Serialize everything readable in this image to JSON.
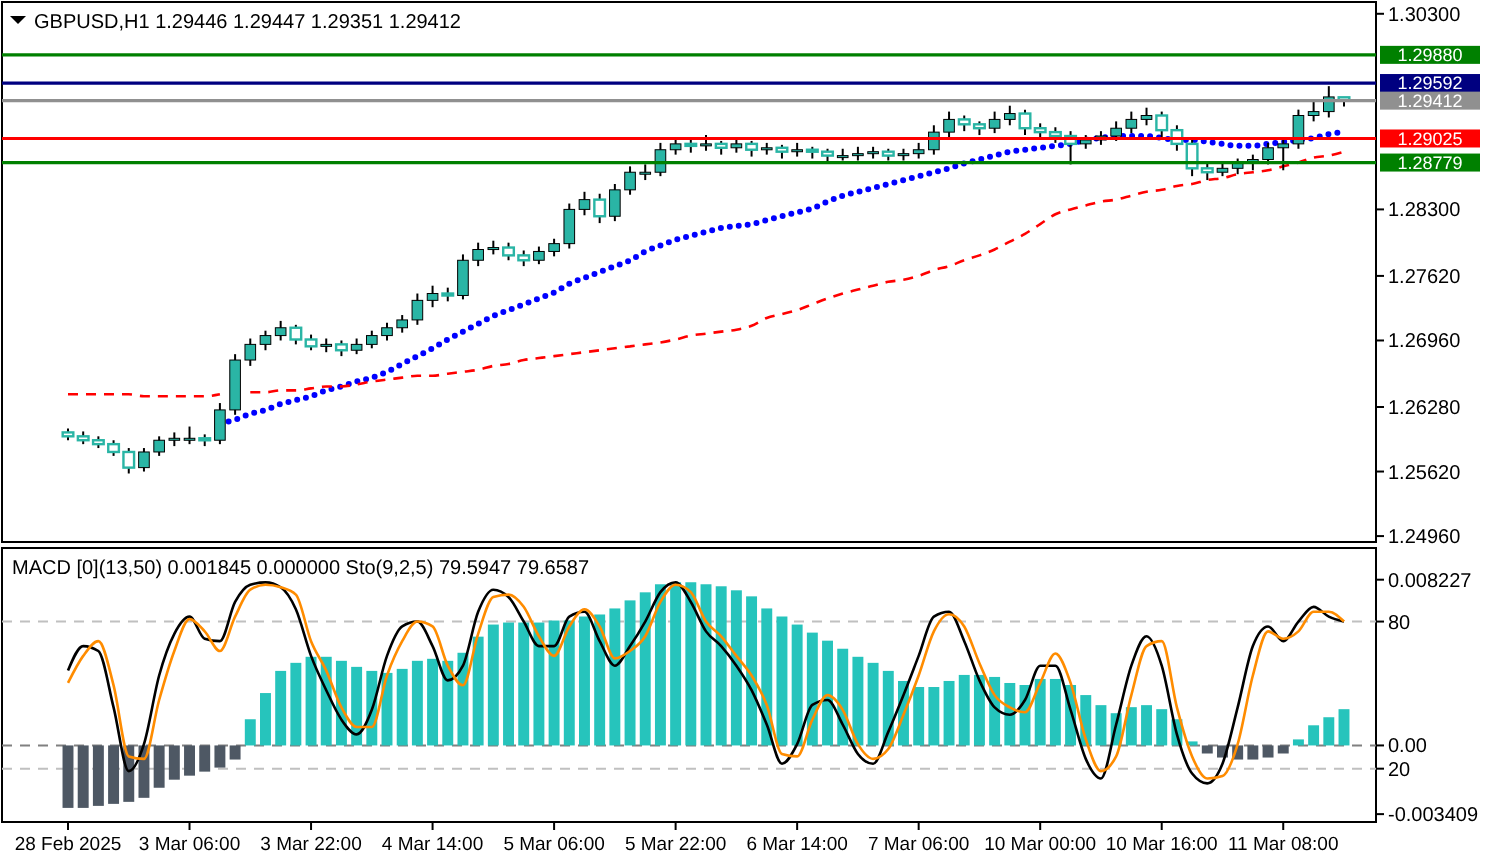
{
  "chart_data": [
    {
      "type": "candlestick",
      "title": "GBPUSD,H1  1.29446 1.29447 1.29351 1.29412",
      "color": "#2ab5a5",
      "ohlc": [
        [
          1.2602,
          1.2606,
          1.2594,
          1.2598
        ],
        [
          1.2598,
          1.2603,
          1.259,
          1.2594
        ],
        [
          1.2594,
          1.2598,
          1.2586,
          1.259
        ],
        [
          1.259,
          1.2594,
          1.2578,
          1.2582
        ],
        [
          1.2582,
          1.2586,
          1.256,
          1.2566
        ],
        [
          1.2566,
          1.2586,
          1.2562,
          1.2582
        ],
        [
          1.2582,
          1.2598,
          1.2578,
          1.2594
        ],
        [
          1.2594,
          1.2602,
          1.2588,
          1.2596
        ],
        [
          1.2596,
          1.2608,
          1.259,
          1.2596
        ],
        [
          1.2596,
          1.26,
          1.2588,
          1.2594
        ],
        [
          1.2594,
          1.2632,
          1.259,
          1.2625
        ],
        [
          1.2625,
          1.2682,
          1.262,
          1.2676
        ],
        [
          1.2676,
          1.2698,
          1.267,
          1.2692
        ],
        [
          1.2692,
          1.2706,
          1.2686,
          1.2701
        ],
        [
          1.2701,
          1.2716,
          1.2696,
          1.2709
        ],
        [
          1.2709,
          1.2712,
          1.2692,
          1.2697
        ],
        [
          1.2697,
          1.2702,
          1.2686,
          1.269
        ],
        [
          1.269,
          1.2698,
          1.2684,
          1.2692
        ],
        [
          1.2692,
          1.2696,
          1.268,
          1.2686
        ],
        [
          1.2686,
          1.2698,
          1.2682,
          1.2692
        ],
        [
          1.2692,
          1.2706,
          1.2688,
          1.2701
        ],
        [
          1.2701,
          1.2714,
          1.2696,
          1.2709
        ],
        [
          1.2709,
          1.2722,
          1.2704,
          1.2717
        ],
        [
          1.2717,
          1.2744,
          1.2712,
          1.2737
        ],
        [
          1.2737,
          1.2752,
          1.273,
          1.2744
        ],
        [
          1.2744,
          1.275,
          1.2736,
          1.2742
        ],
        [
          1.2742,
          1.2784,
          1.2738,
          1.2778
        ],
        [
          1.2778,
          1.2796,
          1.2772,
          1.2789
        ],
        [
          1.2789,
          1.2798,
          1.2784,
          1.2791
        ],
        [
          1.2791,
          1.2796,
          1.2778,
          1.2783
        ],
        [
          1.2783,
          1.2788,
          1.2772,
          1.2778
        ],
        [
          1.2778,
          1.2792,
          1.2774,
          1.2787
        ],
        [
          1.2787,
          1.28,
          1.2782,
          1.2795
        ],
        [
          1.2795,
          1.2836,
          1.279,
          1.283
        ],
        [
          1.283,
          1.2848,
          1.2824,
          1.284
        ],
        [
          1.284,
          1.2846,
          1.2816,
          1.2823
        ],
        [
          1.2823,
          1.2856,
          1.2818,
          1.285
        ],
        [
          1.285,
          1.2874,
          1.2845,
          1.2868
        ],
        [
          1.2868,
          1.2876,
          1.286,
          1.2868
        ],
        [
          1.2868,
          1.2898,
          1.2864,
          1.2891
        ],
        [
          1.2891,
          1.2904,
          1.2886,
          1.2897
        ],
        [
          1.2897,
          1.2902,
          1.2888,
          1.2895
        ],
        [
          1.2895,
          1.2906,
          1.289,
          1.2897
        ],
        [
          1.2897,
          1.29,
          1.2886,
          1.2893
        ],
        [
          1.2893,
          1.2904,
          1.2888,
          1.2897
        ],
        [
          1.2897,
          1.29,
          1.2884,
          1.2891
        ],
        [
          1.2891,
          1.2898,
          1.2886,
          1.2893
        ],
        [
          1.2893,
          1.2896,
          1.2882,
          1.2889
        ],
        [
          1.2889,
          1.2898,
          1.2884,
          1.2891
        ],
        [
          1.2891,
          1.2894,
          1.2882,
          1.2889
        ],
        [
          1.2889,
          1.2892,
          1.2878,
          1.2885
        ],
        [
          1.2885,
          1.2892,
          1.288,
          1.2885
        ],
        [
          1.2885,
          1.2894,
          1.288,
          1.2887
        ],
        [
          1.2887,
          1.2894,
          1.2882,
          1.2889
        ],
        [
          1.2889,
          1.2892,
          1.288,
          1.2885
        ],
        [
          1.2885,
          1.2892,
          1.288,
          1.2887
        ],
        [
          1.2887,
          1.2898,
          1.2882,
          1.2891
        ],
        [
          1.2891,
          1.2916,
          1.2886,
          1.2909
        ],
        [
          1.2909,
          1.293,
          1.2904,
          1.2922
        ],
        [
          1.2922,
          1.2926,
          1.291,
          1.2917
        ],
        [
          1.2917,
          1.292,
          1.2906,
          1.2913
        ],
        [
          1.2913,
          1.293,
          1.2908,
          1.2922
        ],
        [
          1.2922,
          1.2936,
          1.2916,
          1.2928
        ],
        [
          1.2928,
          1.2932,
          1.2906,
          1.2913
        ],
        [
          1.2913,
          1.2918,
          1.2902,
          1.2909
        ],
        [
          1.2909,
          1.2914,
          1.2898,
          1.2905
        ],
        [
          1.2905,
          1.291,
          1.2876,
          1.2897
        ],
        [
          1.2897,
          1.2906,
          1.2892,
          1.2901
        ],
        [
          1.2901,
          1.291,
          1.2896,
          1.2905
        ],
        [
          1.2905,
          1.292,
          1.29,
          1.2913
        ],
        [
          1.2913,
          1.293,
          1.2908,
          1.2922
        ],
        [
          1.2922,
          1.2934,
          1.2916,
          1.2926
        ],
        [
          1.2926,
          1.293,
          1.2904,
          1.2911
        ],
        [
          1.2911,
          1.2916,
          1.289,
          1.2897
        ],
        [
          1.2897,
          1.2902,
          1.2864,
          1.2872
        ],
        [
          1.2872,
          1.2878,
          1.286,
          1.2868
        ],
        [
          1.2868,
          1.2878,
          1.2864,
          1.2872
        ],
        [
          1.2872,
          1.2882,
          1.2866,
          1.2877
        ],
        [
          1.2877,
          1.2886,
          1.287,
          1.2881
        ],
        [
          1.2881,
          1.2898,
          1.2876,
          1.2893
        ],
        [
          1.2893,
          1.2902,
          1.287,
          1.2897
        ],
        [
          1.2897,
          1.2932,
          1.2892,
          1.2926
        ],
        [
          1.2926,
          1.294,
          1.292,
          1.293
        ],
        [
          1.293,
          1.2956,
          1.2924,
          1.2945
        ],
        [
          1.29446,
          1.29447,
          1.29351,
          1.29412
        ]
      ],
      "series": [
        {
          "type": "line",
          "color": "#0000ff",
          "line_style": "dotted",
          "values": [
            null,
            null,
            null,
            null,
            null,
            null,
            null,
            null,
            null,
            null,
            1.2611,
            1.2615,
            1.2621,
            1.2625,
            1.2631,
            1.2635,
            1.2639,
            1.2645,
            1.2649,
            1.2654,
            1.2658,
            1.2664,
            1.2672,
            1.268,
            1.2688,
            1.2697,
            1.2705,
            1.2713,
            1.2721,
            1.2727,
            1.2733,
            1.2739,
            1.2745,
            1.2754,
            1.276,
            1.2766,
            1.2772,
            1.2778,
            1.2787,
            1.2793,
            1.2799,
            1.2803,
            1.2807,
            1.2811,
            1.2813,
            1.2815,
            1.2819,
            1.2823,
            1.2827,
            1.2831,
            1.2838,
            1.2844,
            1.2848,
            1.2852,
            1.2856,
            1.286,
            1.2864,
            1.2868,
            1.2872,
            1.2877,
            1.2881,
            1.2885,
            1.2889,
            1.2891,
            1.2893,
            1.2895,
            1.2897,
            1.2901,
            1.2903,
            1.2905,
            1.2905,
            1.2905,
            1.2903,
            1.2901,
            1.2901,
            1.2899,
            1.2897,
            1.2895,
            1.2895,
            1.2897,
            1.2899,
            1.2901,
            1.2903,
            1.2907,
            1.2909
          ]
        },
        {
          "type": "line",
          "color": "#ff0000",
          "line_style": "dashed",
          "values": [
            1.2641,
            1.2641,
            1.2641,
            1.2641,
            1.2641,
            1.2639,
            1.2639,
            1.2639,
            1.2639,
            1.2639,
            1.2641,
            null,
            1.2643,
            1.2643,
            1.2645,
            1.2645,
            1.2647,
            1.2649,
            1.2649,
            1.2651,
            1.2654,
            1.2656,
            1.2658,
            1.266,
            1.266,
            1.2662,
            1.2664,
            1.2666,
            1.267,
            1.2672,
            1.2676,
            1.2678,
            1.268,
            1.2682,
            1.2684,
            1.2686,
            1.2688,
            1.269,
            1.2692,
            1.2694,
            1.2697,
            1.2701,
            1.2703,
            1.2705,
            1.2707,
            1.2711,
            1.2719,
            1.2723,
            1.2727,
            1.2733,
            1.2739,
            1.2744,
            1.2748,
            1.2752,
            1.2756,
            1.2758,
            1.2762,
            1.2768,
            1.2772,
            1.2778,
            1.2783,
            1.2789,
            1.2797,
            1.2805,
            1.2815,
            1.2825,
            1.283,
            1.2834,
            1.2838,
            1.284,
            1.2844,
            1.2848,
            1.285,
            1.2854,
            1.2856,
            1.286,
            1.2862,
            1.2866,
            1.2868,
            1.287,
            1.2874,
            1.2878,
            1.2883,
            1.2885,
            1.2889
          ]
        }
      ],
      "ylim": [
        1.2492,
        1.304
      ],
      "yticks": [
        {
          "value": 1.303,
          "label": "1.30300"
        },
        {
          "value": 1.283,
          "label": "1.28300"
        },
        {
          "value": 1.2762,
          "label": "1.27620"
        },
        {
          "value": 1.2696,
          "label": "1.26960"
        },
        {
          "value": 1.2628,
          "label": "1.26280"
        },
        {
          "value": 1.2562,
          "label": "1.25620"
        },
        {
          "value": 1.2496,
          "label": "1.24960"
        }
      ],
      "tick_labels": "y",
      "ref_lines": [
        {
          "axis": "y",
          "value": 1.2988,
          "label": "1.29880",
          "color": "#008000"
        },
        {
          "axis": "y",
          "value": 1.29592,
          "label": "1.29592",
          "color": "#000080"
        },
        {
          "axis": "y",
          "value": 1.29412,
          "label": "1.29412",
          "color": "#909090"
        },
        {
          "axis": "y",
          "value": 1.29025,
          "label": "1.29025",
          "color": "#ff0000"
        },
        {
          "axis": "y",
          "value": 1.28779,
          "label": "1.28779",
          "color": "#008000"
        }
      ]
    },
    {
      "type": "bar",
      "title": "MACD [0](13,50) 0.001845 0.000000  Sto(9,2,5) 79.5947 79.6587",
      "categories": [
        "28 Feb 2025",
        null,
        null,
        null,
        null,
        null,
        null,
        null,
        "3 Mar 06:00",
        null,
        null,
        null,
        null,
        null,
        null,
        null,
        "3 Mar 22:00",
        null,
        null,
        null,
        null,
        null,
        null,
        null,
        "4 Mar 14:00",
        null,
        null,
        null,
        null,
        null,
        null,
        null,
        "5 Mar 06:00",
        null,
        null,
        null,
        null,
        null,
        null,
        null,
        "5 Mar 22:00",
        null,
        null,
        null,
        null,
        null,
        null,
        null,
        "6 Mar 14:00",
        null,
        null,
        null,
        null,
        null,
        null,
        null,
        "7 Mar 06:00",
        null,
        null,
        null,
        null,
        null,
        null,
        null,
        "10 Mar 00:00",
        null,
        null,
        null,
        null,
        null,
        null,
        null,
        "10 Mar 16:00",
        null,
        null,
        null,
        null,
        null,
        null,
        null,
        "11 Mar 08:00",
        null,
        null,
        null,
        null
      ],
      "series": [
        {
          "type": "bar",
          "values": [
            -0.0031,
            -0.0031,
            -0.003,
            -0.0029,
            -0.0028,
            -0.0026,
            -0.0021,
            -0.0017,
            -0.0015,
            -0.0013,
            -0.0011,
            -0.0007,
            0.0013,
            0.0026,
            0.0037,
            0.0041,
            0.0044,
            0.0044,
            0.0042,
            0.0039,
            0.0037,
            0.0036,
            0.0038,
            0.0042,
            0.0043,
            0.0042,
            0.0046,
            0.0054,
            0.006,
            0.0061,
            0.0061,
            0.0061,
            0.0062,
            0.0062,
            0.0064,
            0.0065,
            0.0068,
            0.0072,
            0.0076,
            0.008,
            0.0081,
            0.0081,
            0.008,
            0.0079,
            0.0077,
            0.0074,
            0.0068,
            0.0064,
            0.006,
            0.0056,
            0.0052,
            0.0048,
            0.0044,
            0.0041,
            0.0037,
            0.0032,
            0.0029,
            0.0029,
            0.0032,
            0.0035,
            0.0035,
            0.0034,
            0.0031,
            0.003,
            0.0033,
            0.0033,
            0.003,
            0.0025,
            0.002,
            0.0016,
            0.0019,
            0.002,
            0.0018,
            0.0013,
            0.0002,
            -0.0004,
            -0.0006,
            -0.0007,
            -0.0007,
            -0.0006,
            -0.0004,
            0.0003,
            0.001,
            0.0014,
            0.0018
          ],
          "colors": [
            "#4e5864",
            "#4e5864",
            "#4e5864",
            "#4e5864",
            "#4e5864",
            "#4e5864",
            "#4e5864",
            "#4e5864",
            "#4e5864",
            "#4e5864",
            "#4e5864",
            "#4e5864",
            "#26c4bc",
            "#26c4bc",
            "#26c4bc",
            "#26c4bc",
            "#26c4bc",
            "#26c4bc",
            "#26c4bc",
            "#26c4bc",
            "#26c4bc",
            "#26c4bc",
            "#26c4bc",
            "#26c4bc",
            "#26c4bc",
            "#26c4bc",
            "#26c4bc",
            "#26c4bc",
            "#26c4bc",
            "#26c4bc",
            "#26c4bc",
            "#26c4bc",
            "#26c4bc",
            "#26c4bc",
            "#26c4bc",
            "#26c4bc",
            "#26c4bc",
            "#26c4bc",
            "#26c4bc",
            "#26c4bc",
            "#26c4bc",
            "#26c4bc",
            "#26c4bc",
            "#26c4bc",
            "#26c4bc",
            "#26c4bc",
            "#26c4bc",
            "#26c4bc",
            "#26c4bc",
            "#26c4bc",
            "#26c4bc",
            "#26c4bc",
            "#26c4bc",
            "#26c4bc",
            "#26c4bc",
            "#26c4bc",
            "#26c4bc",
            "#26c4bc",
            "#26c4bc",
            "#26c4bc",
            "#26c4bc",
            "#26c4bc",
            "#26c4bc",
            "#26c4bc",
            "#26c4bc",
            "#26c4bc",
            "#26c4bc",
            "#26c4bc",
            "#26c4bc",
            "#26c4bc",
            "#26c4bc",
            "#26c4bc",
            "#26c4bc",
            "#26c4bc",
            "#26c4bc",
            "#4e5864",
            "#4e5864",
            "#4e5864",
            "#4e5864",
            "#4e5864",
            "#4e5864",
            "#26c4bc",
            "#26c4bc",
            "#26c4bc",
            "#26c4bc"
          ]
        },
        {
          "type": "line",
          "axis": "y2",
          "color": "#000000",
          "values": [
            60,
            70,
            68,
            45,
            19,
            30,
            58,
            75,
            82,
            73,
            72,
            88,
            95,
            96,
            94,
            85,
            66,
            52,
            40,
            34,
            44,
            66,
            78,
            80,
            70,
            56,
            62,
            84,
            93,
            90,
            80,
            70,
            70,
            82,
            84,
            72,
            62,
            70,
            80,
            92,
            96,
            88,
            76,
            70,
            62,
            52,
            38,
            22,
            30,
            46,
            48,
            38,
            26,
            22,
            35,
            50,
            66,
            82,
            84,
            72,
            56,
            45,
            42,
            48,
            62,
            62,
            44,
            24,
            16,
            38,
            62,
            74,
            62,
            34,
            18,
            14,
            22,
            45,
            70,
            78,
            72,
            80,
            86,
            82,
            80
          ]
        },
        {
          "type": "line",
          "axis": "y2",
          "color": "#ff8c00",
          "values": [
            55,
            66,
            72,
            54,
            25,
            24,
            48,
            68,
            81,
            76,
            68,
            82,
            93,
            95,
            94,
            91,
            72,
            60,
            45,
            37,
            37,
            58,
            72,
            80,
            78,
            62,
            54,
            75,
            90,
            91,
            86,
            74,
            66,
            78,
            85,
            78,
            65,
            68,
            74,
            88,
            95,
            92,
            80,
            74,
            66,
            58,
            46,
            26,
            25,
            40,
            50,
            44,
            30,
            24,
            28,
            42,
            58,
            76,
            83,
            78,
            63,
            50,
            45,
            43,
            55,
            67,
            55,
            32,
            19,
            25,
            50,
            70,
            72,
            45,
            25,
            16,
            17,
            30,
            58,
            76,
            73,
            76,
            84,
            84,
            80
          ]
        }
      ],
      "ylim": [
        -0.0038,
        0.0098
      ],
      "yticks": [
        0.008227,
        {
          "value": 0,
          "label": "0.00"
        },
        -0.003409
      ],
      "y2lim": [
        -1.75,
        110
      ],
      "y2ticks": [
        80,
        20
      ],
      "ref_lines": [
        {
          "axis": "y2",
          "value": 80,
          "color": "#c0c0c0",
          "line_style": "dashed"
        },
        {
          "axis": "y2",
          "value": 20,
          "color": "#c0c0c0",
          "line_style": "dashed"
        },
        {
          "axis": "y",
          "value": 0,
          "color": "#808080",
          "line_style": "dashed"
        }
      ]
    }
  ]
}
